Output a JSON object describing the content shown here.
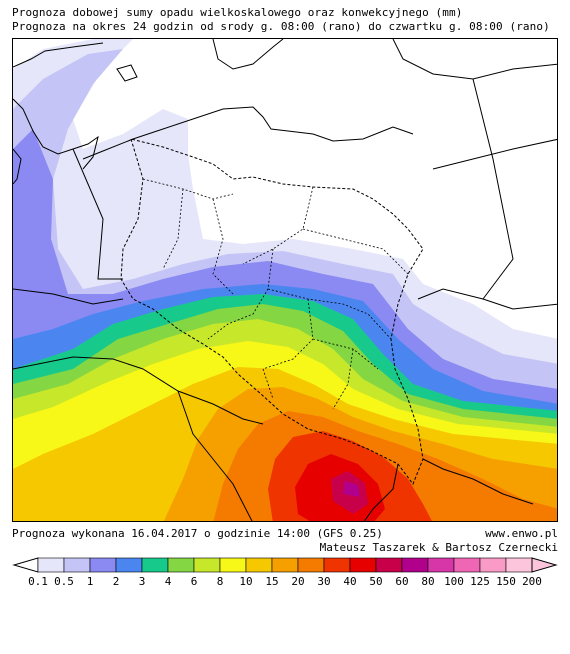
{
  "header": {
    "title_line1": "Prognoza dobowej sumy opadu wielkoskalowego oraz konwekcyjnego (mm)",
    "title_line2": "Prognoza na okres 24 godzin od srody g. 08:00 (rano) do czwartku g. 08:00 (rano)"
  },
  "footer": {
    "forecast_info": "Prognoza wykonana 16.04.2017 o godzinie 14:00 (GFS 0.25)",
    "website": "www.enwo.pl",
    "authors": "Mateusz Taszarek & Bartosz Czernecki"
  },
  "legend": {
    "labels": [
      "0.1",
      "0.5",
      "1",
      "2",
      "3",
      "4",
      "6",
      "8",
      "10",
      "15",
      "20",
      "30",
      "40",
      "50",
      "60",
      "80",
      "100",
      "125",
      "150",
      "200"
    ],
    "colors": [
      "#e6e6fa",
      "#c4c4f6",
      "#8a8af2",
      "#4b86f0",
      "#18c98c",
      "#84d643",
      "#c7e82a",
      "#f7f718",
      "#f5c800",
      "#f6a000",
      "#f47a00",
      "#ef3400",
      "#e60000",
      "#c8004a",
      "#b0008c",
      "#d636a8",
      "#ef67b4",
      "#f99bc6",
      "#fcc5dc"
    ]
  }
}
